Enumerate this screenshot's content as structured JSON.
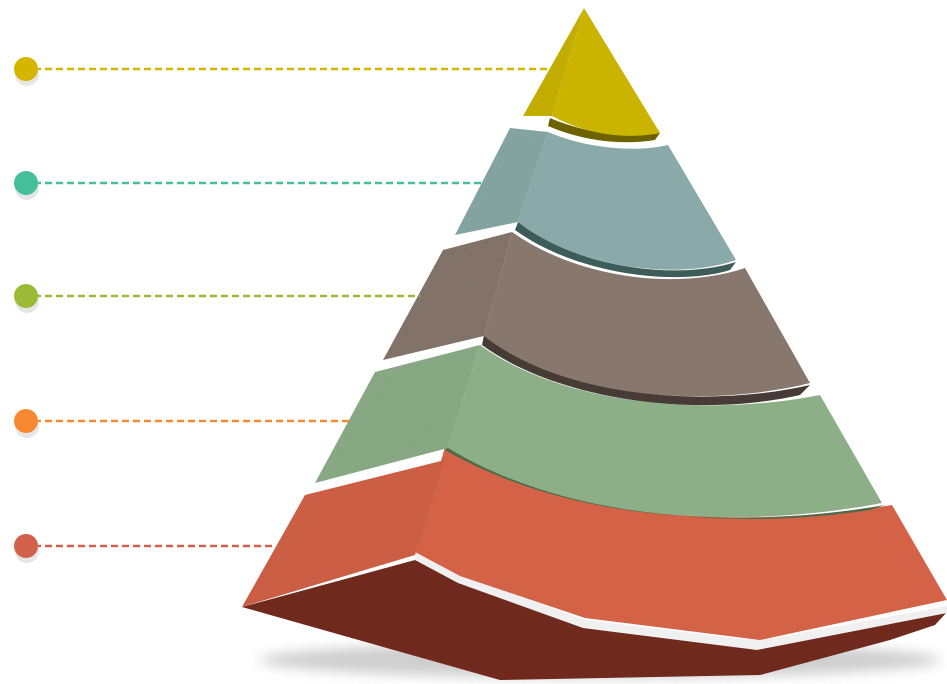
{
  "diagram": {
    "type": "pyramid",
    "levels": [
      {
        "name": "level-1",
        "color": "#cbb400",
        "shadow": "#6e6200",
        "marker": "#d4b600"
      },
      {
        "name": "level-2",
        "color": "#89aaa8",
        "shadow": "#3e5c59",
        "marker": "#45bf9a"
      },
      {
        "name": "level-3",
        "color": "#87776d",
        "shadow": "#463b36",
        "marker": "#9dba36"
      },
      {
        "name": "level-4",
        "color": "#8daf88",
        "shadow": "#4f6a4a",
        "marker": "#f78a31"
      },
      {
        "name": "level-5",
        "color": "#d36246",
        "shadow": "#6e2a1d",
        "marker": "#d2604a"
      }
    ]
  }
}
